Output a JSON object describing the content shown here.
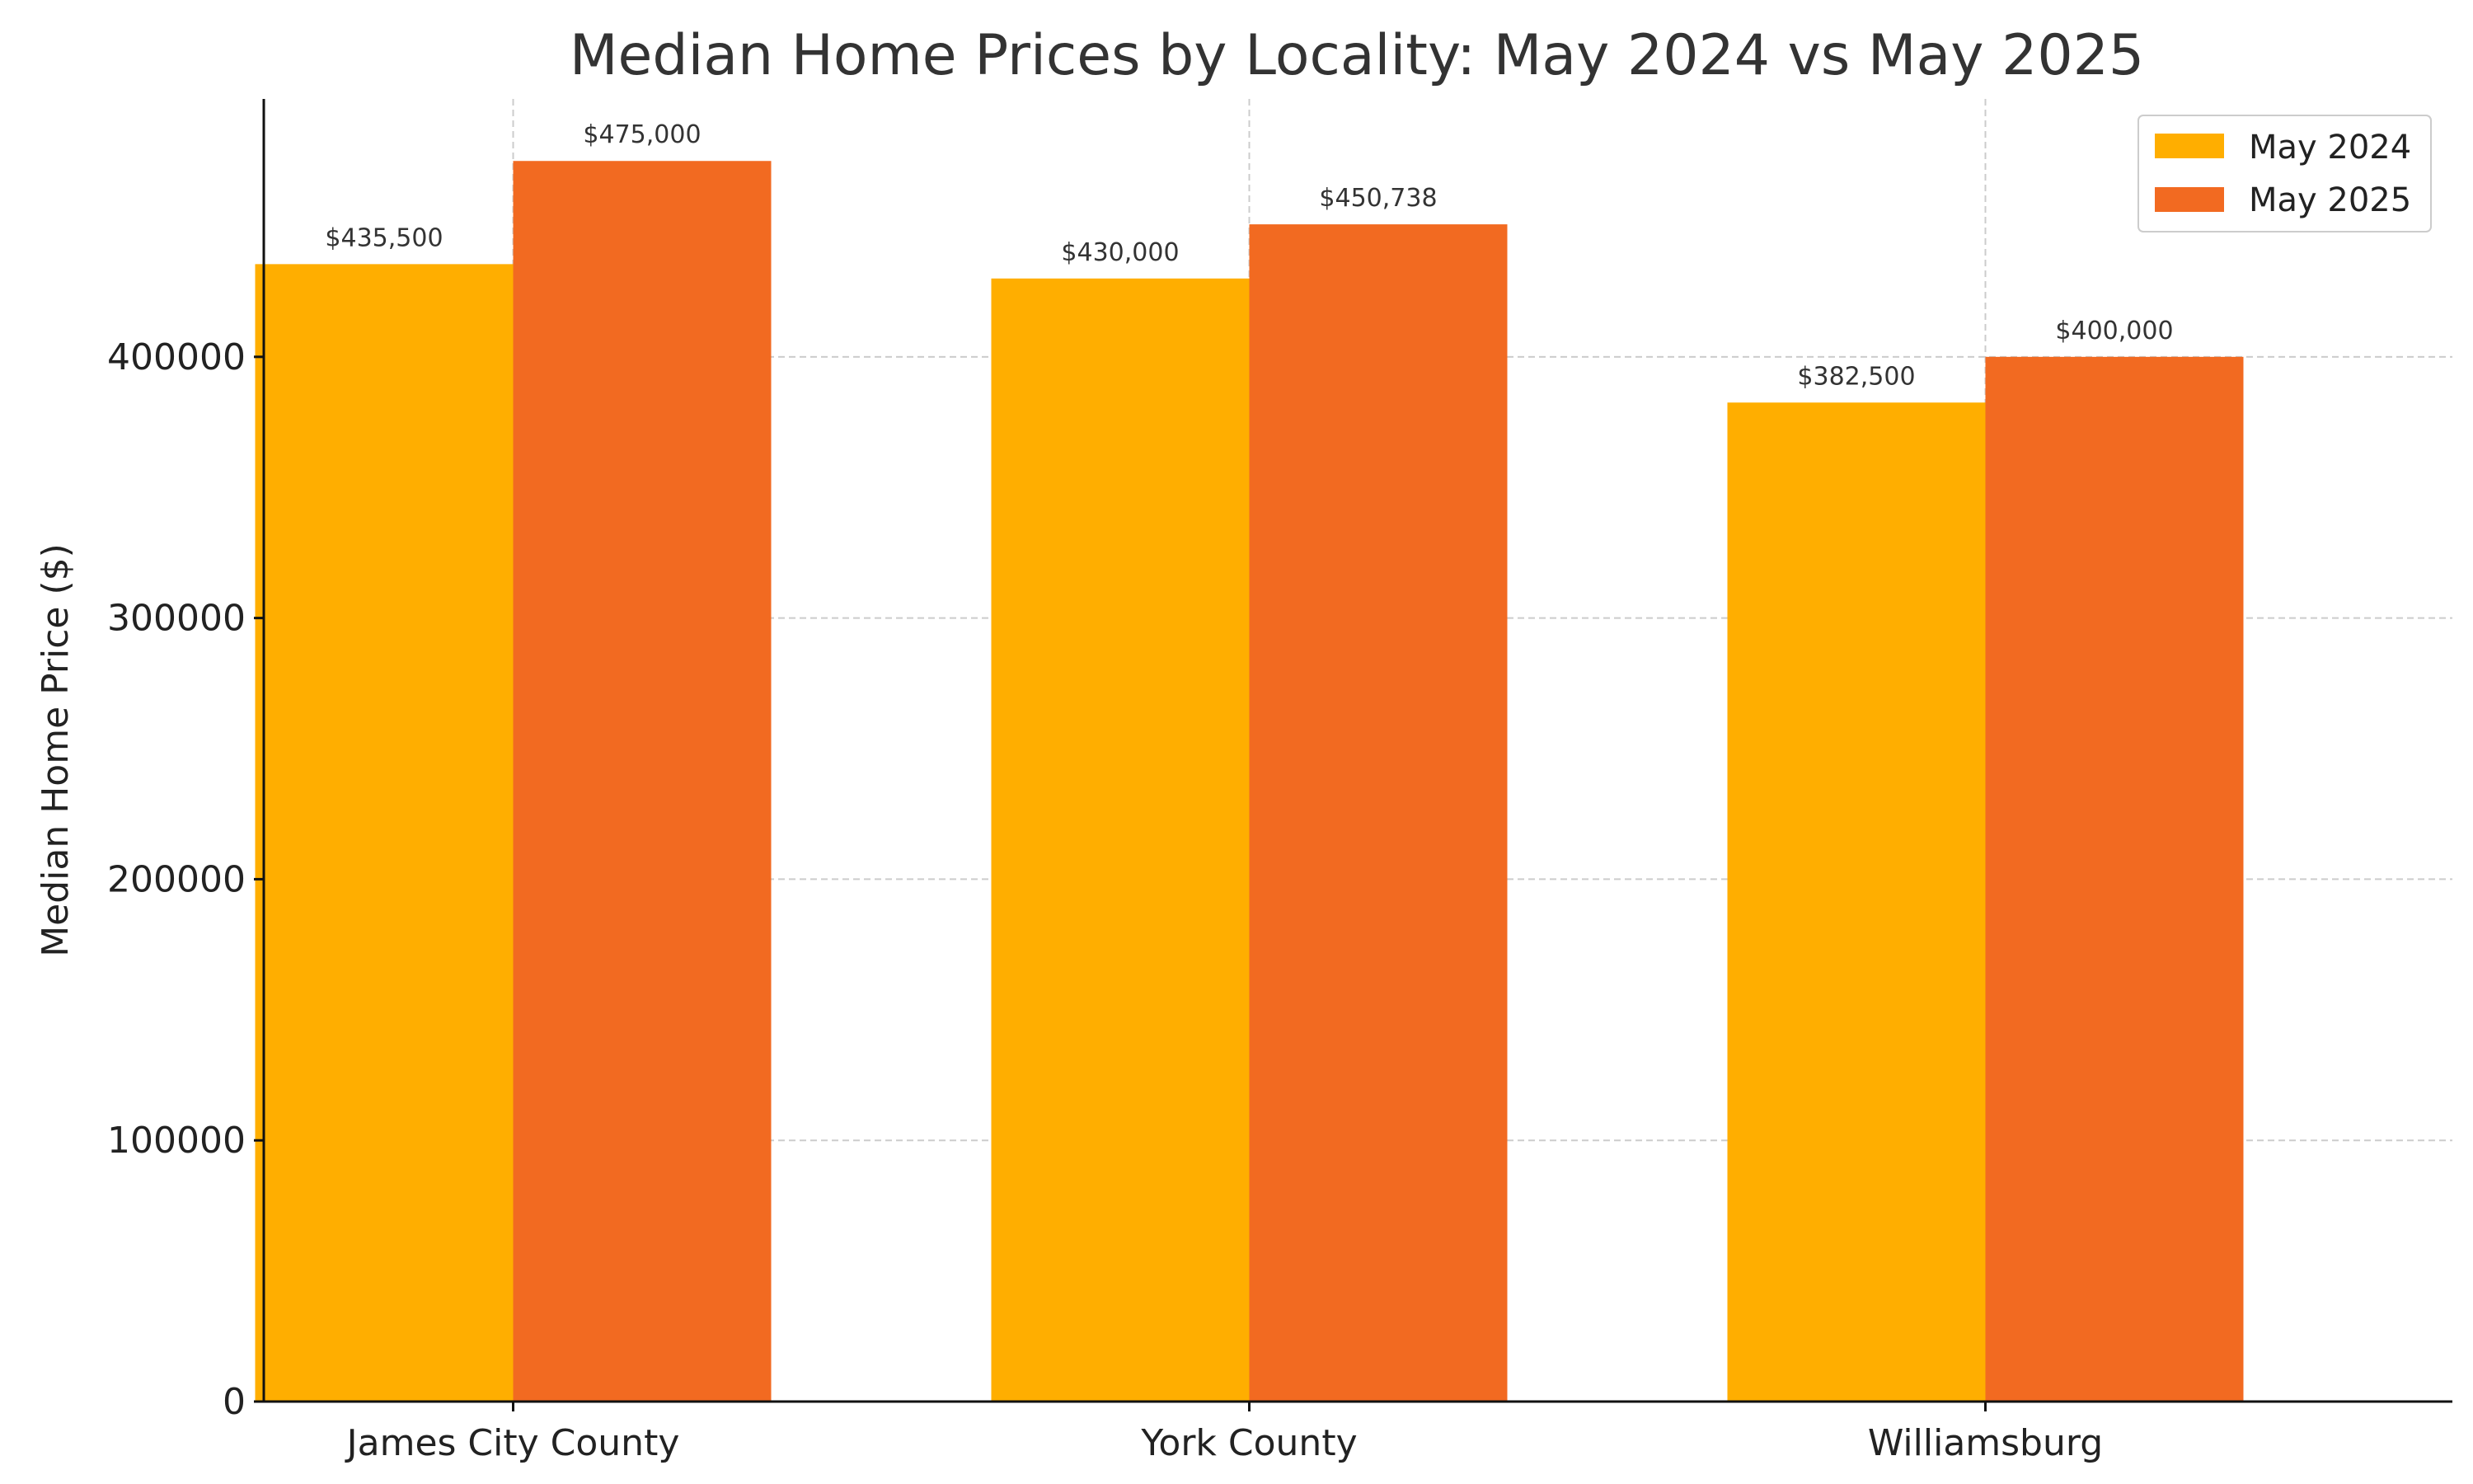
{
  "chart_data": {
    "type": "bar",
    "title": "Median Home Prices by Locality: May 2024 vs May 2025",
    "xlabel": "",
    "ylabel": "Median Home Price ($)",
    "categories": [
      "James City County",
      "York County",
      "Williamsburg"
    ],
    "series": [
      {
        "name": "May 2024",
        "color": "#FFAE00",
        "values": [
          435500,
          430000,
          382500
        ],
        "data_labels": [
          "$435,500",
          "$430,000",
          "$382,500"
        ]
      },
      {
        "name": "May 2025",
        "color": "#F26A21",
        "values": [
          475000,
          450738,
          400000
        ],
        "data_labels": [
          "$475,000",
          "$450,738",
          "$400,000"
        ]
      }
    ],
    "ylim": [
      0,
      498750
    ],
    "yticks": [
      0,
      100000,
      200000,
      300000,
      400000
    ],
    "ytick_labels": [
      "0",
      "100000",
      "200000",
      "300000",
      "400000"
    ],
    "grid": true,
    "legend_position": "top-right"
  }
}
